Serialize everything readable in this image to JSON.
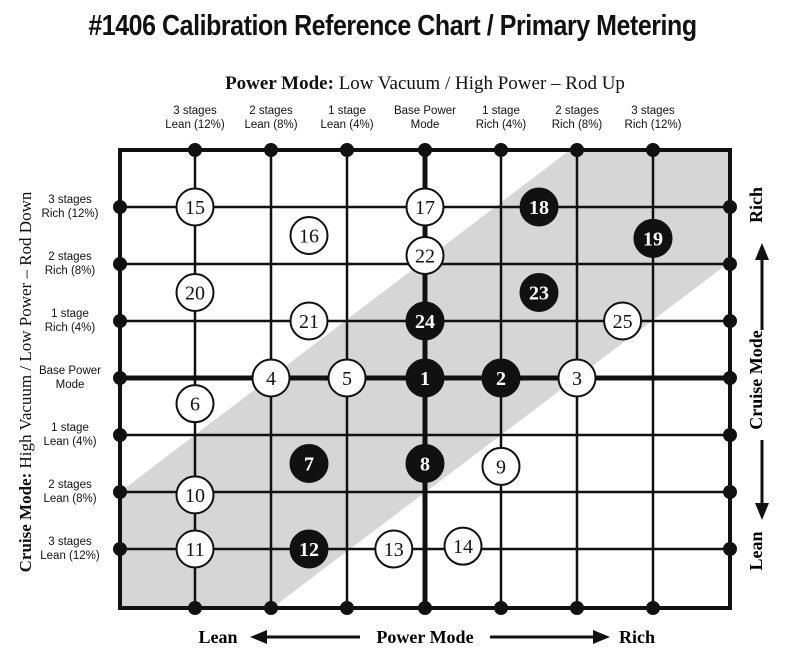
{
  "title": "#1406 Calibration Reference Chart / Primary Metering",
  "top_axis": {
    "bold": "Power Mode:",
    "text": "Low Vacuum / High Power – Rod Up"
  },
  "columns": [
    [
      "3 stages",
      "Lean (12%)"
    ],
    [
      "2 stages",
      "Lean (8%)"
    ],
    [
      "1 stage",
      "Lean (4%)"
    ],
    [
      "Base Power",
      "Mode"
    ],
    [
      "1 stage",
      "Rich (4%)"
    ],
    [
      "2 stages",
      "Rich (8%)"
    ],
    [
      "3 stages",
      "Rich (12%)"
    ]
  ],
  "rows": [
    [
      "3 stages",
      "Rich (12%)"
    ],
    [
      "2 stages",
      "Rich (8%)"
    ],
    [
      "1 stage",
      "Rich (4%)"
    ],
    [
      "Base Power",
      "Mode"
    ],
    [
      "1 stage",
      "Lean (4%)"
    ],
    [
      "2 stages",
      "Lean (8%)"
    ],
    [
      "3 stages",
      "Lean (12%)"
    ]
  ],
  "left_axis": {
    "bold": "Cruise Mode:",
    "text": "High Vacuum / Low Power – Rod Down"
  },
  "right_axis": {
    "label": "Cruise Mode",
    "top": "Rich",
    "bottom": "Lean"
  },
  "bottom_axis": {
    "left": "Lean",
    "center": "Power Mode",
    "right": "Rich"
  },
  "colors": {
    "line": "#111111",
    "band": "#d6d6d6",
    "filled": "#111111",
    "open": "#ffffff"
  },
  "nodes": [
    {
      "n": "15",
      "col": 0,
      "row": 0,
      "filled": false
    },
    {
      "n": "17",
      "col": 3,
      "row": 0,
      "filled": false
    },
    {
      "n": "18",
      "col": 4.5,
      "row": 0,
      "filled": true
    },
    {
      "n": "16",
      "col": 1.5,
      "row": 0.5,
      "filled": false
    },
    {
      "n": "19",
      "col": 6,
      "row": 0.55,
      "filled": true
    },
    {
      "n": "22",
      "col": 3,
      "row": 0.85,
      "filled": false
    },
    {
      "n": "20",
      "col": 0,
      "row": 1.5,
      "filled": false
    },
    {
      "n": "23",
      "col": 4.5,
      "row": 1.5,
      "filled": true
    },
    {
      "n": "21",
      "col": 1.5,
      "row": 2,
      "filled": false
    },
    {
      "n": "24",
      "col": 3,
      "row": 2,
      "filled": true
    },
    {
      "n": "25",
      "col": 5.6,
      "row": 2,
      "filled": false
    },
    {
      "n": "4",
      "col": 1,
      "row": 3,
      "filled": false
    },
    {
      "n": "5",
      "col": 2,
      "row": 3,
      "filled": false
    },
    {
      "n": "1",
      "col": 3,
      "row": 3,
      "filled": true
    },
    {
      "n": "2",
      "col": 4,
      "row": 3,
      "filled": true
    },
    {
      "n": "3",
      "col": 5,
      "row": 3,
      "filled": false
    },
    {
      "n": "6",
      "col": 0,
      "row": 3.45,
      "filled": false
    },
    {
      "n": "7",
      "col": 1.5,
      "row": 4.5,
      "filled": true
    },
    {
      "n": "8",
      "col": 3,
      "row": 4.5,
      "filled": true
    },
    {
      "n": "9",
      "col": 4,
      "row": 4.55,
      "filled": false
    },
    {
      "n": "10",
      "col": 0,
      "row": 5.05,
      "filled": false
    },
    {
      "n": "11",
      "col": 0,
      "row": 6,
      "filled": false
    },
    {
      "n": "12",
      "col": 1.5,
      "row": 6,
      "filled": true
    },
    {
      "n": "13",
      "col": 2.6,
      "row": 6,
      "filled": false
    },
    {
      "n": "14",
      "col": 3.5,
      "row": 5.95,
      "filled": false
    }
  ]
}
